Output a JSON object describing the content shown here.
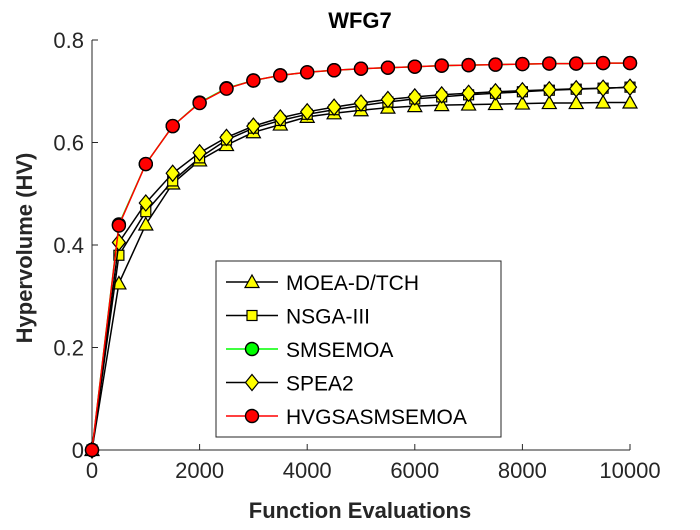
{
  "chart_data": {
    "type": "line",
    "title": "WFG7",
    "xlabel": "Function Evaluations",
    "ylabel": "Hypervolume (HV)",
    "xlim": [
      0,
      10000
    ],
    "ylim": [
      0,
      0.8
    ],
    "xticks": [
      0,
      2000,
      4000,
      6000,
      8000,
      10000
    ],
    "yticks": [
      0,
      0.2,
      0.4,
      0.6,
      0.8
    ],
    "xtick_labels": [
      "0",
      "2000",
      "4000",
      "6000",
      "8000",
      "10000"
    ],
    "ytick_labels": [
      "0",
      "0.2",
      "0.4",
      "0.6",
      "0.8"
    ],
    "grid": false,
    "legend_position": "lower-center",
    "x": [
      0,
      500,
      1000,
      1500,
      2000,
      2500,
      3000,
      3500,
      4000,
      4500,
      5000,
      5500,
      6000,
      6500,
      7000,
      7500,
      8000,
      8500,
      9000,
      9500,
      10000
    ],
    "series": [
      {
        "name": "MOEA-D/TCH",
        "line_color": "#000000",
        "marker": "triangle",
        "marker_fill": "#ffff00",
        "values": [
          0,
          0.325,
          0.44,
          0.52,
          0.565,
          0.595,
          0.62,
          0.635,
          0.65,
          0.657,
          0.663,
          0.668,
          0.671,
          0.673,
          0.674,
          0.675,
          0.676,
          0.677,
          0.677,
          0.678,
          0.678
        ]
      },
      {
        "name": "NSGA-III",
        "line_color": "#000000",
        "marker": "square",
        "marker_fill": "#ffff00",
        "values": [
          0,
          0.38,
          0.465,
          0.525,
          0.57,
          0.605,
          0.628,
          0.643,
          0.655,
          0.664,
          0.672,
          0.679,
          0.685,
          0.689,
          0.693,
          0.696,
          0.699,
          0.702,
          0.704,
          0.706,
          0.708
        ]
      },
      {
        "name": "SMSEMOA",
        "line_color": "#00ff00",
        "marker": "circle",
        "marker_fill": "#00ff00",
        "values": [
          0,
          0.44,
          0.558,
          0.632,
          0.678,
          0.706,
          0.721,
          0.731,
          0.737,
          0.741,
          0.744,
          0.746,
          0.748,
          0.75,
          0.751,
          0.752,
          0.753,
          0.754,
          0.754,
          0.755,
          0.755
        ]
      },
      {
        "name": "SPEA2",
        "line_color": "#000000",
        "marker": "diamond",
        "marker_fill": "#ffff00",
        "values": [
          0,
          0.405,
          0.482,
          0.54,
          0.58,
          0.61,
          0.632,
          0.648,
          0.66,
          0.669,
          0.677,
          0.684,
          0.689,
          0.693,
          0.696,
          0.699,
          0.701,
          0.703,
          0.705,
          0.706,
          0.708
        ]
      },
      {
        "name": "HVGSASMSEMOA",
        "line_color": "#ff0000",
        "marker": "circle",
        "marker_fill": "#ff0000",
        "values": [
          0,
          0.438,
          0.558,
          0.632,
          0.677,
          0.705,
          0.721,
          0.731,
          0.737,
          0.741,
          0.744,
          0.746,
          0.748,
          0.75,
          0.751,
          0.752,
          0.753,
          0.754,
          0.754,
          0.755,
          0.755
        ]
      }
    ]
  }
}
